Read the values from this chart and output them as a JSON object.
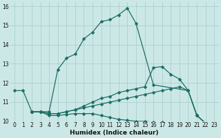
{
  "xlabel": "Humidex (Indice chaleur)",
  "bg_color": "#cce8e6",
  "grid_color": "#aacfcd",
  "line_color": "#1a6e65",
  "xlim": [
    -0.5,
    23.5
  ],
  "ylim": [
    10,
    16.2
  ],
  "xticks": [
    0,
    1,
    2,
    3,
    4,
    5,
    6,
    7,
    8,
    9,
    10,
    11,
    12,
    13,
    14,
    15,
    16,
    17,
    18,
    19,
    20,
    21,
    22,
    23
  ],
  "yticks": [
    10,
    11,
    12,
    13,
    14,
    15,
    16
  ],
  "line1_x": [
    0,
    1,
    2,
    3,
    4,
    5,
    6,
    7,
    8,
    9,
    10,
    11,
    12,
    13,
    14,
    16,
    20,
    21,
    22,
    23
  ],
  "line1_y": [
    11.6,
    11.6,
    10.5,
    10.5,
    10.5,
    12.7,
    13.3,
    13.5,
    14.3,
    14.65,
    15.2,
    15.3,
    15.55,
    15.9,
    15.1,
    11.9,
    11.6,
    10.3,
    9.9,
    9.8
  ],
  "line2_x": [
    2,
    3,
    4,
    5,
    6,
    7,
    8,
    9,
    10,
    11,
    12,
    13,
    14,
    15,
    16,
    17,
    18,
    19,
    20,
    21,
    22,
    23
  ],
  "line2_y": [
    10.5,
    10.5,
    10.4,
    10.4,
    10.5,
    10.6,
    10.8,
    11.0,
    11.2,
    11.3,
    11.5,
    11.6,
    11.7,
    11.8,
    12.8,
    12.85,
    12.45,
    12.2,
    11.6,
    10.3,
    9.9,
    9.8
  ],
  "line3_x": [
    2,
    3,
    4,
    5,
    6,
    7,
    8,
    9,
    10,
    11,
    12,
    13,
    14,
    15,
    16,
    17,
    18,
    19,
    20,
    21,
    22,
    23
  ],
  "line3_y": [
    10.5,
    10.5,
    10.4,
    10.4,
    10.5,
    10.6,
    10.7,
    10.8,
    10.9,
    11.0,
    11.1,
    11.2,
    11.3,
    11.4,
    11.5,
    11.6,
    11.7,
    11.8,
    11.6,
    10.3,
    9.9,
    9.8
  ],
  "line4_x": [
    2,
    3,
    4,
    5,
    6,
    7,
    8,
    9,
    10,
    11,
    12,
    13,
    14,
    15,
    16,
    17,
    18,
    19,
    20,
    21,
    22,
    23
  ],
  "line4_y": [
    10.5,
    10.5,
    10.3,
    10.3,
    10.35,
    10.4,
    10.4,
    10.4,
    10.3,
    10.2,
    10.1,
    10.05,
    10.0,
    10.0,
    9.95,
    9.95,
    9.9,
    9.9,
    9.9,
    9.85,
    9.82,
    9.78
  ]
}
